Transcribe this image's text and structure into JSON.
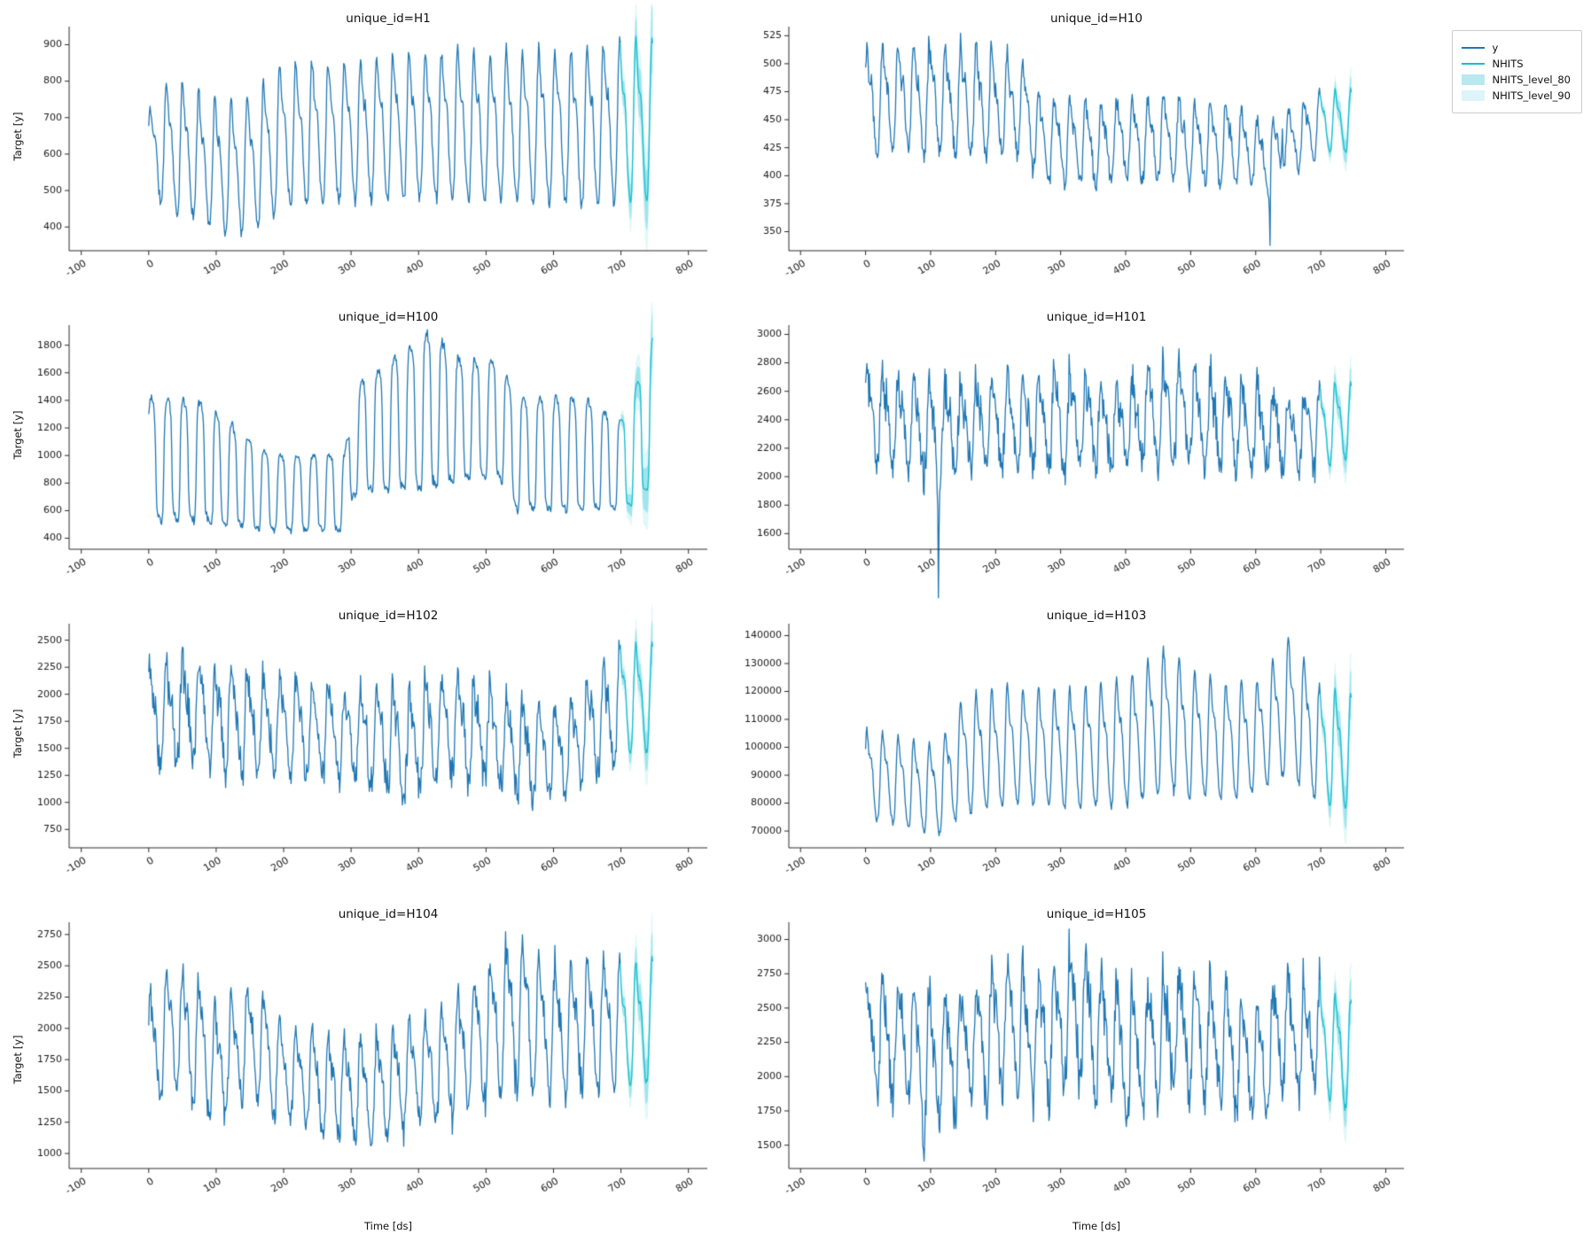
{
  "figure": {
    "background": "#ffffff"
  },
  "colors": {
    "history": "#1f77b4",
    "forecast": "#17becf",
    "band80": "rgba(23,190,207,0.32)",
    "band90": "rgba(23,190,207,0.13)",
    "axis": "#2a2a2a",
    "tick_text": "#1a1a1a"
  },
  "legend": {
    "items": [
      {
        "label": "y",
        "type": "line",
        "color": "#1f77b4"
      },
      {
        "label": "NHITS",
        "type": "line",
        "color": "#17becf"
      },
      {
        "label": "NHITS_level_80",
        "type": "patch",
        "color": "#b9e8ef"
      },
      {
        "label": "NHITS_level_90",
        "type": "patch",
        "color": "#ddf4f8"
      }
    ]
  },
  "axes": {
    "xticks": [
      -100,
      0,
      100,
      200,
      300,
      400,
      500,
      600,
      700,
      800
    ],
    "xlim": [
      -118,
      828
    ],
    "n_history": 700,
    "horizon": 48,
    "period": 24
  },
  "chart_data": [
    {
      "type": "line",
      "title": "unique_id=H1",
      "ylabel": "Target [y]",
      "xlabel": "",
      "ylim": [
        335,
        940
      ],
      "yticks": [
        400,
        500,
        600,
        700,
        800,
        900
      ],
      "mid": [
        [
          0,
          600
        ],
        [
          20,
          620
        ],
        [
          60,
          600
        ],
        [
          110,
          560
        ],
        [
          150,
          570
        ],
        [
          200,
          650
        ],
        [
          280,
          660
        ],
        [
          400,
          675
        ],
        [
          550,
          670
        ],
        [
          650,
          670
        ],
        [
          700,
          685
        ],
        [
          748,
          690
        ]
      ],
      "amp": [
        [
          0,
          120
        ],
        [
          30,
          195
        ],
        [
          80,
          180
        ],
        [
          130,
          195
        ],
        [
          200,
          205
        ],
        [
          300,
          205
        ],
        [
          400,
          215
        ],
        [
          500,
          215
        ],
        [
          600,
          220
        ],
        [
          680,
          235
        ],
        [
          748,
          235
        ]
      ],
      "noise": 0.13,
      "seed": 11,
      "shape": "sine",
      "spikes": []
    },
    {
      "type": "line",
      "title": "unique_id=H10",
      "ylabel": "",
      "xlabel": "",
      "ylim": [
        333,
        530
      ],
      "yticks": [
        350,
        375,
        400,
        425,
        450,
        475,
        500,
        525
      ],
      "mid": [
        [
          0,
          468
        ],
        [
          60,
          470
        ],
        [
          150,
          465
        ],
        [
          240,
          462
        ],
        [
          270,
          432
        ],
        [
          350,
          428
        ],
        [
          450,
          432
        ],
        [
          520,
          430
        ],
        [
          560,
          428
        ],
        [
          600,
          420
        ],
        [
          640,
          425
        ],
        [
          680,
          440
        ],
        [
          700,
          448
        ],
        [
          748,
          448
        ]
      ],
      "amp": [
        [
          0,
          48
        ],
        [
          100,
          50
        ],
        [
          200,
          50
        ],
        [
          260,
          40
        ],
        [
          400,
          38
        ],
        [
          550,
          38
        ],
        [
          620,
          30
        ],
        [
          680,
          30
        ],
        [
          700,
          28
        ],
        [
          748,
          30
        ]
      ],
      "noise": 0.3,
      "seed": 22,
      "shape": "sine",
      "spikes": [
        [
          622,
          -85
        ],
        [
          641,
          45
        ]
      ]
    },
    {
      "type": "line",
      "title": "unique_id=H100",
      "ylabel": "Target [y]",
      "xlabel": "",
      "ylim": [
        320,
        1920
      ],
      "yticks": [
        400,
        600,
        800,
        1000,
        1200,
        1400,
        1600,
        1800
      ],
      "mid": [
        [
          0,
          950
        ],
        [
          85,
          950
        ],
        [
          100,
          900
        ],
        [
          180,
          720
        ],
        [
          290,
          720
        ],
        [
          305,
          1100
        ],
        [
          330,
          1150
        ],
        [
          420,
          1320
        ],
        [
          460,
          1250
        ],
        [
          520,
          1250
        ],
        [
          545,
          1000
        ],
        [
          640,
          1000
        ],
        [
          700,
          920
        ],
        [
          720,
          1050
        ],
        [
          748,
          1320
        ]
      ],
      "amp": [
        [
          0,
          440
        ],
        [
          85,
          420
        ],
        [
          180,
          270
        ],
        [
          290,
          270
        ],
        [
          305,
          380
        ],
        [
          420,
          560
        ],
        [
          460,
          420
        ],
        [
          520,
          420
        ],
        [
          545,
          400
        ],
        [
          640,
          400
        ],
        [
          700,
          320
        ],
        [
          748,
          520
        ]
      ],
      "noise": 0.1,
      "seed": 33,
      "shape": "square",
      "spikes": [
        [
          95,
          -450
        ]
      ]
    },
    {
      "type": "line",
      "title": "unique_id=H101",
      "ylabel": "",
      "xlabel": "",
      "ylim": [
        1490,
        3040
      ],
      "yticks": [
        1600,
        1800,
        2000,
        2200,
        2400,
        2600,
        2800,
        3000
      ],
      "mid": [
        [
          0,
          2450
        ],
        [
          50,
          2380
        ],
        [
          110,
          2300
        ],
        [
          200,
          2380
        ],
        [
          300,
          2400
        ],
        [
          400,
          2350
        ],
        [
          460,
          2450
        ],
        [
          520,
          2400
        ],
        [
          600,
          2350
        ],
        [
          650,
          2300
        ],
        [
          700,
          2350
        ],
        [
          748,
          2400
        ]
      ],
      "amp": [
        [
          0,
          330
        ],
        [
          100,
          330
        ],
        [
          200,
          320
        ],
        [
          300,
          330
        ],
        [
          400,
          330
        ],
        [
          460,
          380
        ],
        [
          520,
          330
        ],
        [
          600,
          320
        ],
        [
          700,
          300
        ],
        [
          748,
          280
        ]
      ],
      "noise": 0.55,
      "seed": 44,
      "shape": "sine",
      "spikes": [
        [
          112,
          -780
        ]
      ]
    },
    {
      "type": "line",
      "title": "unique_id=H102",
      "ylabel": "Target [y]",
      "xlabel": "",
      "ylim": [
        580,
        2620
      ],
      "yticks": [
        750,
        1000,
        1250,
        1500,
        1750,
        2000,
        2250,
        2500
      ],
      "mid": [
        [
          0,
          1800
        ],
        [
          60,
          1850
        ],
        [
          120,
          1750
        ],
        [
          200,
          1700
        ],
        [
          260,
          1650
        ],
        [
          320,
          1600
        ],
        [
          380,
          1550
        ],
        [
          450,
          1700
        ],
        [
          520,
          1600
        ],
        [
          560,
          1450
        ],
        [
          620,
          1500
        ],
        [
          680,
          1800
        ],
        [
          700,
          1950
        ],
        [
          748,
          1950
        ]
      ],
      "amp": [
        [
          0,
          520
        ],
        [
          100,
          530
        ],
        [
          200,
          470
        ],
        [
          300,
          430
        ],
        [
          380,
          560
        ],
        [
          450,
          480
        ],
        [
          550,
          470
        ],
        [
          620,
          430
        ],
        [
          680,
          520
        ],
        [
          700,
          520
        ],
        [
          748,
          520
        ]
      ],
      "noise": 0.45,
      "seed": 55,
      "shape": "sine",
      "spikes": [
        [
          383,
          -350
        ]
      ]
    },
    {
      "type": "line",
      "title": "unique_id=H103",
      "ylabel": "",
      "xlabel": "",
      "ylim": [
        64000,
        143000
      ],
      "yticks": [
        70000,
        80000,
        90000,
        100000,
        110000,
        120000,
        130000,
        140000
      ],
      "mid": [
        [
          0,
          90000
        ],
        [
          50,
          88000
        ],
        [
          80,
          85500
        ],
        [
          115,
          85000
        ],
        [
          150,
          97000
        ],
        [
          220,
          100000
        ],
        [
          300,
          99000
        ],
        [
          360,
          100000
        ],
        [
          420,
          103000
        ],
        [
          460,
          110000
        ],
        [
          500,
          104000
        ],
        [
          560,
          102000
        ],
        [
          600,
          103000
        ],
        [
          650,
          114000
        ],
        [
          690,
          104000
        ],
        [
          700,
          100000
        ],
        [
          748,
          98000
        ]
      ],
      "amp": [
        [
          0,
          17000
        ],
        [
          60,
          17000
        ],
        [
          115,
          17500
        ],
        [
          160,
          22500
        ],
        [
          250,
          21500
        ],
        [
          350,
          22500
        ],
        [
          460,
          27000
        ],
        [
          520,
          23000
        ],
        [
          600,
          21000
        ],
        [
          650,
          26000
        ],
        [
          700,
          22500
        ],
        [
          748,
          22000
        ]
      ],
      "noise": 0.1,
      "seed": 66,
      "shape": "sine",
      "spikes": []
    },
    {
      "type": "line",
      "title": "unique_id=H104",
      "ylabel": "Target [y]",
      "xlabel": "Time [ds]",
      "ylim": [
        880,
        2820
      ],
      "yticks": [
        1000,
        1250,
        1500,
        1750,
        2000,
        2250,
        2500,
        2750
      ],
      "mid": [
        [
          0,
          1800
        ],
        [
          40,
          2050
        ],
        [
          100,
          1700
        ],
        [
          150,
          1900
        ],
        [
          200,
          1650
        ],
        [
          260,
          1550
        ],
        [
          320,
          1480
        ],
        [
          380,
          1600
        ],
        [
          430,
          1700
        ],
        [
          480,
          1850
        ],
        [
          520,
          2050
        ],
        [
          560,
          2100
        ],
        [
          600,
          1950
        ],
        [
          650,
          2050
        ],
        [
          700,
          2000
        ],
        [
          748,
          2050
        ]
      ],
      "amp": [
        [
          0,
          480
        ],
        [
          60,
          540
        ],
        [
          120,
          500
        ],
        [
          200,
          420
        ],
        [
          300,
          430
        ],
        [
          400,
          440
        ],
        [
          480,
          560
        ],
        [
          540,
          640
        ],
        [
          600,
          560
        ],
        [
          660,
          560
        ],
        [
          700,
          520
        ],
        [
          748,
          520
        ]
      ],
      "noise": 0.32,
      "seed": 77,
      "shape": "sine",
      "spikes": []
    },
    {
      "type": "line",
      "title": "unique_id=H105",
      "ylabel": "",
      "xlabel": "Time [ds]",
      "ylim": [
        1330,
        3100
      ],
      "yticks": [
        1500,
        1750,
        2000,
        2250,
        2500,
        2750,
        3000
      ],
      "mid": [
        [
          0,
          2300
        ],
        [
          60,
          2250
        ],
        [
          100,
          2100
        ],
        [
          160,
          2250
        ],
        [
          220,
          2350
        ],
        [
          280,
          2300
        ],
        [
          320,
          2450
        ],
        [
          380,
          2250
        ],
        [
          420,
          2150
        ],
        [
          470,
          2350
        ],
        [
          520,
          2300
        ],
        [
          560,
          2200
        ],
        [
          600,
          2100
        ],
        [
          650,
          2350
        ],
        [
          700,
          2250
        ],
        [
          748,
          2150
        ]
      ],
      "amp": [
        [
          0,
          420
        ],
        [
          100,
          480
        ],
        [
          200,
          450
        ],
        [
          300,
          480
        ],
        [
          400,
          470
        ],
        [
          500,
          470
        ],
        [
          600,
          420
        ],
        [
          700,
          430
        ],
        [
          748,
          420
        ]
      ],
      "noise": 0.55,
      "seed": 88,
      "shape": "sine",
      "spikes": [
        [
          90,
          -500
        ]
      ]
    }
  ]
}
